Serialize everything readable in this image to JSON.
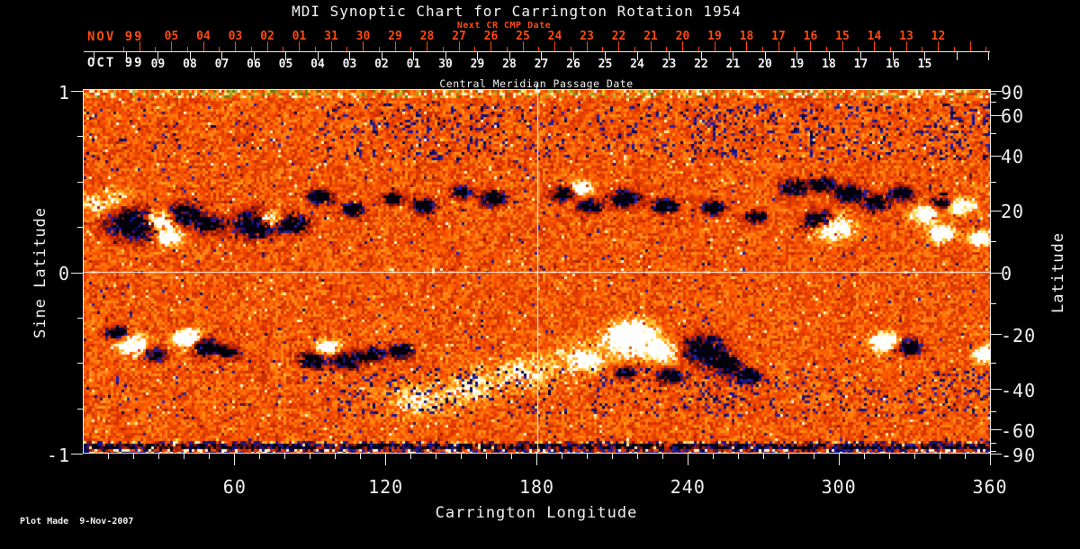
{
  "title": "MDI Synoptic Chart for Carrington Rotation 1954",
  "top_axis": {
    "next_cr_caption": "Next CR CMP Date",
    "red_month": "NOV 99",
    "red_days": [
      "05",
      "04",
      "03",
      "02",
      "01",
      "31",
      "30",
      "29",
      "28",
      "27",
      "26",
      "25",
      "24",
      "23",
      "22",
      "21",
      "20",
      "19",
      "18",
      "17",
      "16",
      "15",
      "14",
      "13",
      "12"
    ],
    "white_month": "OCT 99",
    "white_days": [
      "09",
      "08",
      "07",
      "06",
      "05",
      "04",
      "03",
      "02",
      "01",
      "30",
      "29",
      "28",
      "27",
      "26",
      "25",
      "24",
      "23",
      "22",
      "21",
      "20",
      "19",
      "18",
      "17",
      "16",
      "15"
    ],
    "caption": "Central Meridian Passage Date"
  },
  "left_axis": {
    "title": "Sine Latitude",
    "ticks": [
      "1",
      "0",
      "-1"
    ],
    "tick_values": [
      1,
      0,
      -1
    ]
  },
  "right_axis": {
    "title": "Latitude",
    "ticks": [
      "90",
      "60",
      "40",
      "20",
      "0",
      "-20",
      "-40",
      "-60",
      "-90"
    ],
    "tick_values": [
      90,
      60,
      40,
      20,
      0,
      -20,
      -40,
      -60,
      -90
    ]
  },
  "bottom_axis": {
    "title": "Carrington Longitude",
    "ticks": [
      "60",
      "120",
      "180",
      "240",
      "300",
      "360"
    ],
    "tick_values": [
      60,
      120,
      180,
      240,
      300,
      360
    ]
  },
  "footer_note": "Plot Made  9-Nov-2007",
  "colors": {
    "background": "#000000",
    "axis": "#ececec",
    "text": "#f2f2f2",
    "red_axis": "#ff4a0e"
  },
  "chart_data": {
    "type": "heatmap",
    "title": "MDI Synoptic Chart for Carrington Rotation 1954",
    "carrington_rotation": 1954,
    "xlabel": "Carrington Longitude",
    "x_range_deg": [
      0,
      360
    ],
    "x_major_ticks_deg": [
      60,
      120,
      180,
      240,
      300,
      360
    ],
    "ylabel_left": "Sine Latitude",
    "y_range_sine": [
      -1,
      1
    ],
    "ylabel_right": "Latitude",
    "y_range_deg": [
      -90,
      90
    ],
    "top_label": "Central Meridian Passage Date",
    "cmp_dates_oct99": [
      "09",
      "08",
      "07",
      "06",
      "05",
      "04",
      "03",
      "02",
      "01",
      "30",
      "29",
      "28",
      "27",
      "26",
      "25",
      "24",
      "23",
      "22",
      "21",
      "20",
      "19",
      "18",
      "17",
      "16",
      "15"
    ],
    "next_cr_cmp_dates_nov99": [
      "05",
      "04",
      "03",
      "02",
      "01",
      "31",
      "30",
      "29",
      "28",
      "27",
      "26",
      "25",
      "24",
      "23",
      "22",
      "21",
      "20",
      "19",
      "18",
      "17",
      "16",
      "15",
      "14",
      "13",
      "12"
    ],
    "grid_lines": {
      "longitude_deg": 180,
      "sine_latitude": 0
    },
    "palette": [
      [
        0,
        "#02000a"
      ],
      [
        0.06,
        "#000046"
      ],
      [
        0.13,
        "#2222bb"
      ],
      [
        0.19,
        "#3c1030"
      ],
      [
        0.24,
        "#701010"
      ],
      [
        0.32,
        "#a81c00"
      ],
      [
        0.42,
        "#d03000"
      ],
      [
        0.52,
        "#ee4400"
      ],
      [
        0.62,
        "#ff5f00"
      ],
      [
        0.72,
        "#ff8412"
      ],
      [
        0.8,
        "#ffb028"
      ],
      [
        0.87,
        "#ffd84a"
      ],
      [
        0.93,
        "#fff2b4"
      ],
      [
        1,
        "#ffffff"
      ]
    ],
    "field_legend": {
      "negative_polarity": "blue/black",
      "near_zero": "red/orange",
      "positive_polarity": "yellow/white"
    },
    "active_regions_format": [
      "longitude_deg",
      "sine_latitude",
      "polarity_strength",
      "radius_deg"
    ],
    "active_regions": [
      [
        20,
        0.26,
        -1,
        6.5
      ],
      [
        30,
        0.28,
        1,
        4.3
      ],
      [
        39,
        0.31,
        -1,
        4.3
      ],
      [
        34,
        0.19,
        1,
        3.2
      ],
      [
        50,
        0.26,
        -1,
        3.6
      ],
      [
        68,
        0.26,
        -1,
        5.4
      ],
      [
        74,
        0.29,
        1,
        2.9
      ],
      [
        83,
        0.26,
        -1,
        3.9
      ],
      [
        94,
        0.41,
        -1,
        2.9
      ],
      [
        107,
        0.34,
        -1,
        2.9
      ],
      [
        123,
        0.4,
        -1,
        2.5
      ],
      [
        135,
        0.36,
        -1,
        2.9
      ],
      [
        150,
        0.44,
        -1,
        2.5
      ],
      [
        163,
        0.4,
        -1,
        3.2
      ],
      [
        190,
        0.43,
        -1,
        2.9
      ],
      [
        198,
        0.46,
        1,
        2.5
      ],
      [
        201,
        0.36,
        -1,
        2.9
      ],
      [
        215,
        0.4,
        -1,
        3.6
      ],
      [
        231,
        0.36,
        -1,
        3.2
      ],
      [
        250,
        0.35,
        -1,
        2.9
      ],
      [
        267,
        0.3,
        -1,
        2.5
      ],
      [
        282,
        0.46,
        -1,
        3.2
      ],
      [
        293,
        0.48,
        -1,
        2.9
      ],
      [
        304,
        0.43,
        -1,
        3.6
      ],
      [
        315,
        0.38,
        -1,
        3.2
      ],
      [
        325,
        0.43,
        -1,
        2.9
      ],
      [
        292,
        0.28,
        -1,
        3.9
      ],
      [
        298,
        0.24,
        1,
        4.6
      ],
      [
        334,
        0.31,
        1,
        3.2
      ],
      [
        341,
        0.21,
        1,
        3.2
      ],
      [
        349,
        0.36,
        1,
        3.2
      ],
      [
        356,
        0.18,
        1,
        2.9
      ],
      [
        341,
        0.38,
        -1,
        2.5
      ],
      [
        5,
        0.37,
        0.4,
        4.3
      ],
      [
        14,
        0.4,
        0.3,
        3.6
      ],
      [
        13,
        -0.34,
        -1,
        2.9
      ],
      [
        20,
        -0.41,
        1,
        3.9
      ],
      [
        28,
        -0.46,
        -1,
        2.9
      ],
      [
        41,
        -0.37,
        1,
        3.6
      ],
      [
        49,
        -0.42,
        -1,
        3.6
      ],
      [
        58,
        -0.45,
        -1,
        2.5
      ],
      [
        91,
        -0.49,
        -1,
        3.2
      ],
      [
        97,
        -0.42,
        1,
        2.9
      ],
      [
        105,
        -0.49,
        -1,
        3.6
      ],
      [
        115,
        -0.46,
        -1,
        2.9
      ],
      [
        126,
        -0.44,
        -1,
        2.9
      ],
      [
        200,
        -0.49,
        1,
        2.5
      ],
      [
        218,
        -0.35,
        1,
        5.7
      ],
      [
        230,
        -0.44,
        1,
        3.9
      ],
      [
        246,
        -0.43,
        -1,
        5.4
      ],
      [
        255,
        -0.51,
        -1,
        3.9
      ],
      [
        264,
        -0.58,
        -1,
        3.2
      ],
      [
        233,
        -0.58,
        -1,
        2.9
      ],
      [
        215,
        -0.56,
        -1,
        2.5
      ],
      [
        318,
        -0.39,
        1,
        3.6
      ],
      [
        328,
        -0.42,
        -1,
        3.2
      ],
      [
        358,
        -0.46,
        1,
        2.9
      ],
      [
        132,
        -0.71,
        0.35,
        7.2
      ],
      [
        154,
        -0.64,
        0.35,
        7.2
      ],
      [
        175,
        -0.56,
        0.35,
        7.2
      ],
      [
        197,
        -0.49,
        0.35,
        7.2
      ],
      [
        216,
        -0.41,
        0.35,
        6.4
      ]
    ],
    "speckle_bands": [
      {
        "sine_latitude": [
          0.62,
          0.94
        ],
        "polarity": -1,
        "density": 0.05
      },
      {
        "sine_latitude": [
          -0.8,
          -0.52
        ],
        "polarity": -1,
        "density": 0.04
      }
    ],
    "polar_bands": {
      "north": "yellow/olive/white striped noise above sine latitude 0.955",
      "south": "blue/white/yellow striped noise below sine latitude -0.93"
    },
    "seed": 1954
  }
}
